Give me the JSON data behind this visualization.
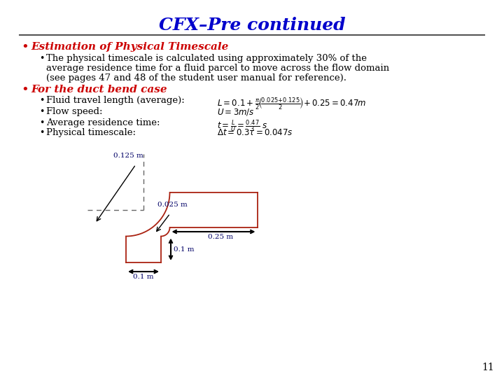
{
  "title": "CFX–Pre continued",
  "title_color": "#0000CC",
  "title_fontsize": 18,
  "bg_color": "#FFFFFF",
  "bullet1_text": "Estimation of Physical Timescale",
  "bullet1_color": "#CC0000",
  "sub1_line1": "The physical timescale is calculated using approximately 30% of the",
  "sub1_line2": "average residence time for a fluid parcel to move across the flow domain",
  "sub1_line3": "(see pages 47 and 48 of the student user manual for reference).",
  "bullet2_text": "For the duct bend case",
  "bullet2_color": "#CC0000",
  "sub2a": "Fluid travel length (average):",
  "sub2b": "Flow speed:",
  "sub2c": "Average residence time:",
  "sub2d": "Physical timescale:",
  "page_num": "11",
  "red_color": "#AA2211",
  "dim_color": "#000066",
  "line_sep_color": "#555555"
}
